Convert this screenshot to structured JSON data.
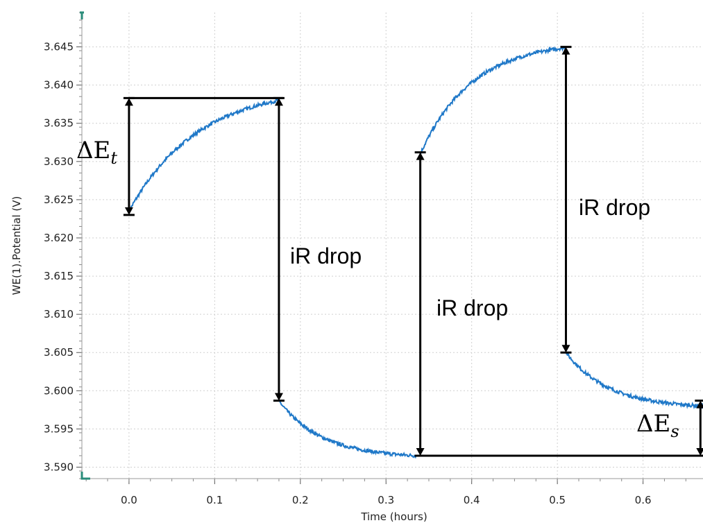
{
  "chart_data": {
    "type": "line",
    "xlabel": "Time (hours)",
    "ylabel": "WE(1).Potential (V)",
    "xlim": [
      -0.055,
      0.67
    ],
    "ylim": [
      3.5885,
      3.6495
    ],
    "x_ticks": [
      "0.0",
      "0.1",
      "0.2",
      "0.3",
      "0.4",
      "0.5",
      "0.6"
    ],
    "y_ticks": [
      "3.590",
      "3.595",
      "3.600",
      "3.605",
      "3.610",
      "3.615",
      "3.620",
      "3.625",
      "3.630",
      "3.635",
      "3.640",
      "3.645"
    ],
    "grid": true,
    "series": [
      {
        "color": "#1f78c8",
        "segments": [
          {
            "phase": "pulse",
            "t_start": 0.0,
            "t_end": 0.175,
            "v_start": 3.6235,
            "v_end": 3.638,
            "tau": 0.08
          },
          {
            "phase": "relax",
            "t_start": 0.176,
            "t_end": 0.335,
            "v_start": 3.5985,
            "v_end": 3.5915,
            "tau": 0.05
          },
          {
            "phase": "pulse",
            "t_start": 0.34,
            "t_end": 0.51,
            "v_start": 3.631,
            "v_end": 3.6449,
            "tau": 0.06
          },
          {
            "phase": "relax",
            "t_start": 0.51,
            "t_end": 0.67,
            "v_start": 3.605,
            "v_end": 3.598,
            "tau": 0.05
          }
        ]
      }
    ],
    "annotations": {
      "delta_t_label": "ΔE",
      "delta_t_sub": "t",
      "delta_s_label": "ΔE",
      "delta_s_sub": "s",
      "ir_drop_labels": [
        "iR drop",
        "iR drop",
        "iR drop"
      ],
      "markers": {
        "delta_t": {
          "x": 0.0,
          "y_low": 3.623,
          "y_high": 3.6383
        },
        "ir1": {
          "x": 0.175,
          "y_high": 3.6383,
          "y_low": 3.5987
        },
        "ir2": {
          "x": 0.34,
          "y_high": 3.6312,
          "y_low": 3.5915
        },
        "ir3": {
          "x": 0.51,
          "y_high": 3.645,
          "y_low": 3.605
        },
        "delta_s": {
          "x": 0.667,
          "y_high": 3.5987,
          "y_low": 3.5915
        },
        "top_line": {
          "x_start": 0.0,
          "x_end": 0.175,
          "y": 3.6383
        },
        "bottom_line": {
          "x_start": 0.34,
          "x_end": 0.67,
          "y": 3.5915
        }
      }
    }
  }
}
